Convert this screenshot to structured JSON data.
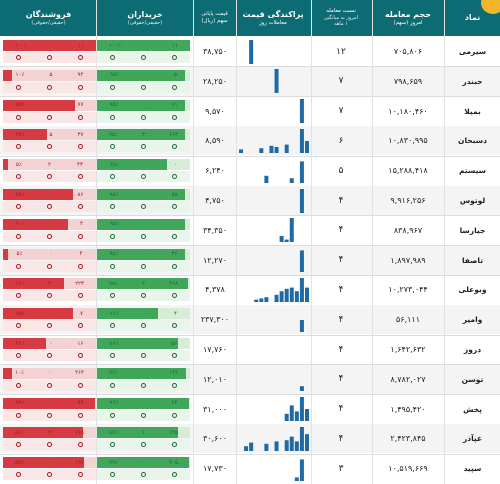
{
  "header": {
    "name": "نماد",
    "volume": "حجم معامله",
    "volume_sub": "امروز (سهم)",
    "ratio": "نسبت معامله",
    "ratio_sub1": "امروز به میانگین",
    "ratio_sub2": "۱ ماهه",
    "chart": "پراکندگی قیمت",
    "chart_sub": "معاملات روز",
    "price": "قیمت پایانی",
    "price_sub": "سهم (ریال)",
    "buyers": "خریداران",
    "buyers_sub": "(حقیقی/حقوقی)",
    "sellers": "فروشندگان",
    "sellers_sub": "(حقیقی/حقوقی)"
  },
  "colors": {
    "header": "#0d6b73",
    "buy": "#3fa65a",
    "sell": "#d63a43",
    "bars": "#1f6aa5"
  },
  "rows": [
    {
      "name": "سیرمی",
      "volume": "۷۰۵,۸۰۶",
      "ratio": "۱۲",
      "price": "۳۸,۷۵۰",
      "bars": [
        0,
        0,
        1,
        0,
        0,
        0,
        0,
        0,
        0,
        0,
        0,
        0,
        0,
        0
      ],
      "buy_real": "۱۱",
      "buy_legal": "۰",
      "buy_pct": "۱۰۰٪",
      "buy_fill": 1.0,
      "sell_real": "۱۱",
      "sell_legal": "۰",
      "sell_pct": "۱۰۰٪",
      "sell_fill": 1.0
    },
    {
      "name": "حبندر",
      "volume": "۷۹۸,۶۵۹",
      "ratio": "۷",
      "price": "۲۸,۲۵۰",
      "bars": [
        0,
        0,
        0,
        0,
        0,
        0,
        0,
        1,
        0,
        0,
        0,
        0,
        0,
        0
      ],
      "buy_real": "۵",
      "buy_legal": "۰",
      "buy_pct": "۹۵٪",
      "buy_fill": 0.95,
      "sell_real": "۹۴",
      "sell_legal": "۵",
      "sell_pct": "۱۰٪",
      "sell_fill": 0.1
    },
    {
      "name": "بمیلا",
      "volume": "۱۰,۱۸۰,۴۶۰",
      "ratio": "۷",
      "price": "۹,۵۷۰",
      "bars": [
        0,
        0,
        0,
        0,
        0,
        0,
        0,
        0,
        0,
        0,
        0,
        0,
        1,
        0
      ],
      "buy_real": "۷۱",
      "buy_legal": "۰",
      "buy_pct": "۹۵٪",
      "buy_fill": 0.95,
      "sell_real": "۷۷",
      "sell_legal": "۰",
      "sell_pct": "۷۷٪",
      "sell_fill": 0.77
    },
    {
      "name": "دسبحان",
      "volume": "۱۰,۸۳۰,۹۹۵",
      "ratio": "۶",
      "price": "۸,۵۹۰",
      "bars": [
        0.15,
        0,
        0,
        0,
        0.2,
        0,
        0.3,
        0.25,
        0,
        0.35,
        0,
        0,
        1,
        0.5
      ],
      "buy_real": "۶۶۳",
      "buy_legal": "۳",
      "buy_pct": "۹۵٪",
      "buy_fill": 0.95,
      "sell_real": "۳۷",
      "sell_legal": "۵",
      "sell_pct": "۴۷٪",
      "sell_fill": 0.47
    },
    {
      "name": "سیستم",
      "volume": "۱۵,۲۸۸,۴۱۸",
      "ratio": "۵",
      "price": "۶,۲۴۰",
      "bars": [
        0,
        0,
        0,
        0,
        0,
        0.3,
        0,
        0,
        0,
        0,
        0.2,
        0,
        0.9,
        0
      ],
      "buy_real": "۰",
      "buy_legal": "۰",
      "buy_pct": "۷۵٪",
      "buy_fill": 0.75,
      "sell_real": "۴۳",
      "sell_legal": "۲",
      "sell_pct": "۵٪",
      "sell_fill": 0.05
    },
    {
      "name": "لوتوس",
      "volume": "۹,۹۱۶,۲۵۶",
      "ratio": "۴",
      "price": "۴,۷۵۰",
      "bars": [
        0,
        0,
        0,
        0,
        0,
        0,
        0,
        0,
        0,
        0,
        0,
        0,
        1,
        0
      ],
      "buy_real": "۵۵",
      "buy_legal": "۰",
      "buy_pct": "۹۵٪",
      "buy_fill": 0.95,
      "sell_real": "۸۶",
      "sell_legal": "۰",
      "sell_pct": "۷۵٪",
      "sell_fill": 0.75
    },
    {
      "name": "جیارسا",
      "volume": "۸۳۸,۹۶۷",
      "ratio": "۴",
      "price": "۳۴,۳۵۰",
      "bars": [
        0,
        0,
        0,
        0,
        0,
        0,
        0,
        0,
        0.25,
        0.1,
        1,
        0,
        0,
        0
      ],
      "buy_real": "۰",
      "buy_legal": "۰",
      "buy_pct": "۹۵٪",
      "buy_fill": 0.95,
      "sell_real": "۴",
      "sell_legal": "۰",
      "sell_pct": "۷۰٪",
      "sell_fill": 0.7
    },
    {
      "name": "تاصفا",
      "volume": "۱,۸۹۷,۹۸۹",
      "ratio": "۴",
      "price": "۱۲,۲۷۰",
      "bars": [
        0,
        0,
        0,
        0,
        0,
        0,
        0,
        0,
        0,
        0,
        0,
        0,
        0.9,
        0
      ],
      "buy_real": "۳۶",
      "buy_legal": "۰",
      "buy_pct": "۹۵٪",
      "buy_fill": 0.95,
      "sell_real": "۴",
      "sell_legal": "۰",
      "sell_pct": "۵٪",
      "sell_fill": 0.05
    },
    {
      "name": "وبوعلی",
      "volume": "۱۰,۲۷۳,۰۴۴",
      "ratio": "۴",
      "price": "۴,۳۷۸",
      "bars": [
        0,
        0,
        0,
        0.1,
        0.15,
        0.2,
        0,
        0.3,
        0.45,
        0.55,
        0.6,
        0.45,
        1,
        0.6
      ],
      "buy_real": "۴۶۸",
      "buy_legal": "۲",
      "buy_pct": "۹۸٪",
      "buy_fill": 0.98,
      "sell_real": "۲۲۳",
      "sell_legal": "۳",
      "sell_pct": "۶۶٪",
      "sell_fill": 0.66
    },
    {
      "name": "وامیر",
      "volume": "۵۶,۱۱۱",
      "ratio": "۴",
      "price": "۲۳۷,۳۰۰",
      "bars": [
        0,
        0,
        0,
        0,
        0,
        0,
        0,
        0,
        0,
        0,
        0,
        0,
        0.5,
        0
      ],
      "buy_real": "۴",
      "buy_legal": "۰",
      "buy_pct": "۶۶٪",
      "buy_fill": 0.66,
      "sell_real": "۷",
      "sell_legal": "۰",
      "sell_pct": "۷۵٪",
      "sell_fill": 0.75
    },
    {
      "name": "دروز",
      "volume": "۱,۶۴۲,۶۳۲",
      "ratio": "۴",
      "price": "۱۷,۷۶۰",
      "bars": [
        0,
        0,
        0,
        0,
        0,
        0,
        0,
        0,
        0,
        0,
        0,
        0,
        0,
        0
      ],
      "buy_real": "۵۶",
      "buy_legal": "۰",
      "buy_pct": "۸۷٪",
      "buy_fill": 0.87,
      "sell_real": "۱۶",
      "sell_legal": "۰",
      "sell_pct": "۴۶٪",
      "sell_fill": 0.46
    },
    {
      "name": "توسن",
      "volume": "۸,۷۸۲,۰۲۷",
      "ratio": "۴",
      "price": "۱۲,۰۱۰",
      "bars": [
        0,
        0,
        0,
        0,
        0,
        0,
        0,
        0,
        0,
        0,
        0,
        0,
        0.2,
        0
      ],
      "buy_real": "۱۴۴",
      "buy_legal": "۰",
      "buy_pct": "۹۶٪",
      "buy_fill": 0.96,
      "sell_real": "۴۶۴",
      "sell_legal": "۰",
      "sell_pct": "۱۰٪",
      "sell_fill": 0.1
    },
    {
      "name": "پخش",
      "volume": "۱,۴۹۵,۴۲۰",
      "ratio": "۴",
      "price": "۳۱,۰۰۰",
      "bars": [
        0,
        0,
        0,
        0,
        0,
        0,
        0,
        0,
        0,
        0.3,
        0.65,
        0.4,
        1,
        0.5
      ],
      "buy_real": "۴۴",
      "buy_legal": "۰",
      "buy_pct": "۹۹٪",
      "buy_fill": 0.99,
      "sell_real": "۹۹",
      "sell_legal": "۰",
      "sell_pct": "۹۹٪",
      "sell_fill": 0.99
    },
    {
      "name": "غپآذر",
      "volume": "۲,۴۲۳,۸۴۵",
      "ratio": "۴",
      "price": "۳۰,۶۰۰",
      "bars": [
        0,
        0.2,
        0.35,
        0,
        0,
        0.3,
        0,
        0.4,
        0,
        0.45,
        0.6,
        0.4,
        1,
        0.7
      ],
      "buy_real": "۱۴۵",
      "buy_legal": "۱",
      "buy_pct": "۸۷٪",
      "buy_fill": 0.87,
      "sell_real": "۱۷۸",
      "sell_legal": "۲",
      "sell_pct": "۸۶٪",
      "sell_fill": 0.86
    },
    {
      "name": "سپید",
      "volume": "۱۰,۵۱۹,۶۶۹",
      "ratio": "۳",
      "price": "۱۷,۷۳۰",
      "bars": [
        0,
        0,
        0,
        0,
        0,
        0,
        0,
        0,
        0,
        0,
        0,
        0.15,
        0.9,
        0
      ],
      "buy_real": "۲۰۵",
      "buy_legal": "۰",
      "buy_pct": "۹۹٪",
      "buy_fill": 0.99,
      "sell_real": "۱۹۷",
      "sell_legal": "۰",
      "sell_pct": "۸۷٪",
      "sell_fill": 0.87
    }
  ]
}
